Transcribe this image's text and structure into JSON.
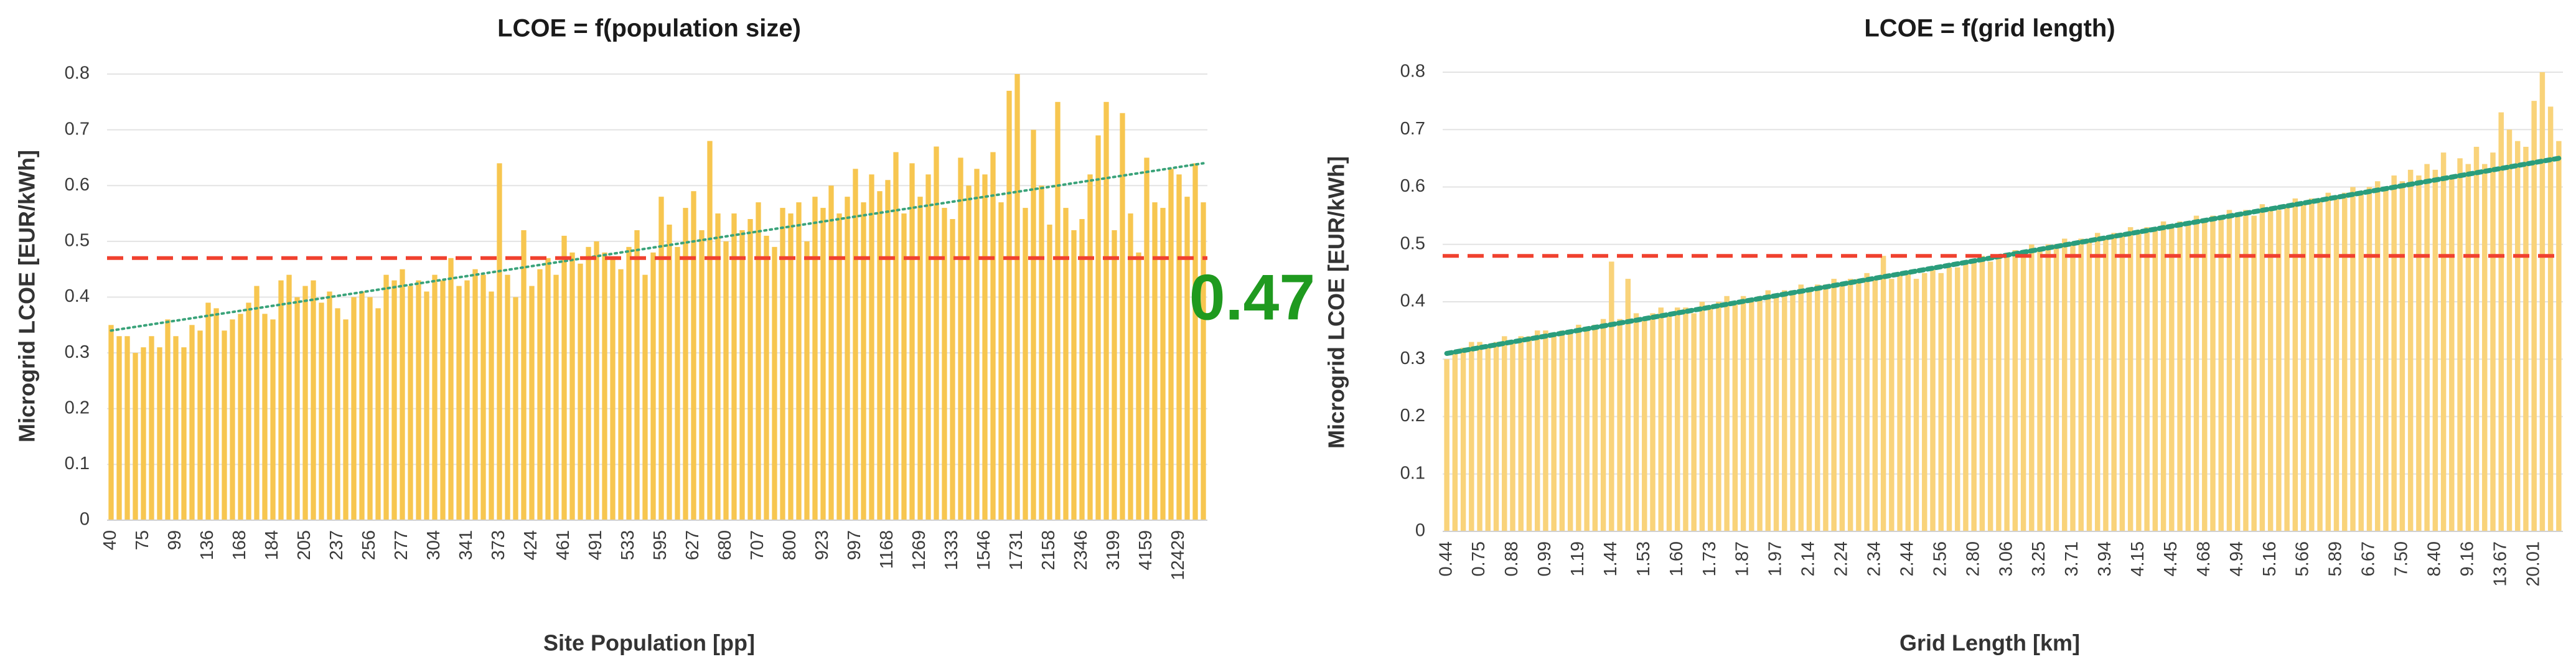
{
  "chart_data": [
    {
      "type": "bar",
      "title": "LCOE = f(population size)",
      "x_label": "Site Population [pp]",
      "y_label": "Microgrid LCOE [EUR/kWh]",
      "annotation": "0.47",
      "categories": [
        "40",
        null,
        null,
        null,
        "75",
        null,
        null,
        null,
        "99",
        null,
        null,
        null,
        "136",
        null,
        null,
        null,
        "168",
        null,
        null,
        null,
        "184",
        null,
        null,
        null,
        "205",
        null,
        null,
        null,
        "237",
        null,
        null,
        null,
        "256",
        null,
        null,
        null,
        "277",
        null,
        null,
        null,
        "304",
        null,
        null,
        null,
        "341",
        null,
        null,
        null,
        "373",
        null,
        null,
        null,
        "424",
        null,
        null,
        null,
        "461",
        null,
        null,
        null,
        "491",
        null,
        null,
        null,
        "533",
        null,
        null,
        null,
        "595",
        null,
        null,
        null,
        "627",
        null,
        null,
        null,
        "680",
        null,
        null,
        null,
        "707",
        null,
        null,
        null,
        "800",
        null,
        null,
        null,
        "923",
        null,
        null,
        null,
        "997",
        null,
        null,
        null,
        "1168",
        null,
        null,
        null,
        "1269",
        null,
        null,
        null,
        "1333",
        null,
        null,
        null,
        "1546",
        null,
        null,
        null,
        "1731",
        null,
        null,
        null,
        "2158",
        null,
        null,
        null,
        "2346",
        null,
        null,
        null,
        "3199",
        null,
        null,
        null,
        "4159",
        null,
        null,
        null,
        "12429",
        null,
        null,
        null
      ],
      "values": [
        0.35,
        0.33,
        0.33,
        0.3,
        0.31,
        0.33,
        0.31,
        0.36,
        0.33,
        0.31,
        0.35,
        0.34,
        0.39,
        0.38,
        0.34,
        0.36,
        0.37,
        0.39,
        0.42,
        0.37,
        0.36,
        0.43,
        0.44,
        0.4,
        0.42,
        0.43,
        0.39,
        0.41,
        0.38,
        0.36,
        0.4,
        0.41,
        0.4,
        0.38,
        0.44,
        0.43,
        0.45,
        0.42,
        0.43,
        0.41,
        0.44,
        0.43,
        0.47,
        0.42,
        0.43,
        0.45,
        0.44,
        0.41,
        0.64,
        0.44,
        0.4,
        0.52,
        0.42,
        0.45,
        0.47,
        0.44,
        0.51,
        0.48,
        0.46,
        0.49,
        0.5,
        0.48,
        0.47,
        0.45,
        0.49,
        0.52,
        0.44,
        0.48,
        0.58,
        0.53,
        0.49,
        0.56,
        0.59,
        0.52,
        0.68,
        0.55,
        0.5,
        0.55,
        0.52,
        0.54,
        0.57,
        0.51,
        0.49,
        0.56,
        0.55,
        0.57,
        0.5,
        0.58,
        0.56,
        0.6,
        0.55,
        0.58,
        0.63,
        0.57,
        0.62,
        0.59,
        0.61,
        0.66,
        0.55,
        0.64,
        0.58,
        0.62,
        0.67,
        0.56,
        0.54,
        0.65,
        0.6,
        0.63,
        0.62,
        0.66,
        0.57,
        0.77,
        0.8,
        0.56,
        0.7,
        0.6,
        0.53,
        0.75,
        0.56,
        0.52,
        0.54,
        0.62,
        0.69,
        0.75,
        0.52,
        0.73,
        0.55,
        0.48,
        0.65,
        0.57,
        0.56,
        0.63,
        0.62,
        0.58,
        0.64,
        0.57
      ],
      "color": "#f7c650",
      "trend": [
        0.34,
        0.64
      ],
      "trend_color": "#3aa37a",
      "threshold": 0.47,
      "threshold_color": "#f0412f",
      "ylim": [
        0,
        0.8
      ],
      "yticks": [
        0,
        0.1,
        0.2,
        0.3,
        0.4,
        0.5,
        0.6,
        0.7,
        0.8
      ],
      "grid": true
    },
    {
      "type": "bar",
      "title": "LCOE = f(grid length)",
      "x_label": "Grid Length [km]",
      "y_label": "Microgrid LCOE [EUR/kWh]",
      "categories": [
        "0.44",
        null,
        null,
        null,
        "0.75",
        null,
        null,
        null,
        "0.88",
        null,
        null,
        null,
        "0.99",
        null,
        null,
        null,
        "1.19",
        null,
        null,
        null,
        "1.44",
        null,
        null,
        null,
        "1.53",
        null,
        null,
        null,
        "1.60",
        null,
        null,
        null,
        "1.73",
        null,
        null,
        null,
        "1.87",
        null,
        null,
        null,
        "1.97",
        null,
        null,
        null,
        "2.14",
        null,
        null,
        null,
        "2.24",
        null,
        null,
        null,
        "2.34",
        null,
        null,
        null,
        "2.44",
        null,
        null,
        null,
        "2.56",
        null,
        null,
        null,
        "2.80",
        null,
        null,
        null,
        "3.06",
        null,
        null,
        null,
        "3.25",
        null,
        null,
        null,
        "3.71",
        null,
        null,
        null,
        "3.94",
        null,
        null,
        null,
        "4.15",
        null,
        null,
        null,
        "4.45",
        null,
        null,
        null,
        "4.68",
        null,
        null,
        null,
        "4.94",
        null,
        null,
        null,
        "5.16",
        null,
        null,
        null,
        "5.66",
        null,
        null,
        null,
        "5.89",
        null,
        null,
        null,
        "6.67",
        null,
        null,
        null,
        "7.50",
        null,
        null,
        null,
        "8.40",
        null,
        null,
        null,
        "9.16",
        null,
        null,
        null,
        "13.67",
        null,
        null,
        null,
        "20.01",
        null,
        null,
        null
      ],
      "values": [
        0.3,
        0.31,
        0.32,
        0.33,
        0.33,
        0.32,
        0.33,
        0.34,
        0.33,
        0.34,
        0.34,
        0.35,
        0.35,
        0.34,
        0.35,
        0.35,
        0.36,
        0.35,
        0.36,
        0.37,
        0.47,
        0.37,
        0.44,
        0.38,
        0.37,
        0.38,
        0.39,
        0.38,
        0.39,
        0.39,
        0.38,
        0.4,
        0.39,
        0.4,
        0.41,
        0.4,
        0.41,
        0.4,
        0.41,
        0.42,
        0.41,
        0.42,
        0.42,
        0.43,
        0.42,
        0.43,
        0.43,
        0.44,
        0.43,
        0.44,
        0.44,
        0.45,
        0.44,
        0.48,
        0.44,
        0.45,
        0.45,
        0.44,
        0.45,
        0.46,
        0.45,
        0.46,
        0.46,
        0.47,
        0.47,
        0.48,
        0.47,
        0.48,
        0.48,
        0.49,
        0.49,
        0.5,
        0.49,
        0.5,
        0.5,
        0.51,
        0.5,
        0.51,
        0.51,
        0.52,
        0.51,
        0.52,
        0.52,
        0.53,
        0.52,
        0.53,
        0.53,
        0.54,
        0.53,
        0.54,
        0.54,
        0.55,
        0.54,
        0.55,
        0.55,
        0.56,
        0.55,
        0.56,
        0.55,
        0.57,
        0.56,
        0.56,
        0.57,
        0.58,
        0.57,
        0.58,
        0.58,
        0.59,
        0.58,
        0.59,
        0.6,
        0.59,
        0.6,
        0.61,
        0.6,
        0.62,
        0.61,
        0.63,
        0.62,
        0.64,
        0.63,
        0.66,
        0.62,
        0.65,
        0.64,
        0.67,
        0.64,
        0.66,
        0.73,
        0.7,
        0.68,
        0.67,
        0.75,
        0.8,
        0.74,
        0.68
      ],
      "color": "#f9d37a",
      "trend": [
        0.31,
        0.65
      ],
      "trend_color": "#2a9d7c",
      "threshold": 0.48,
      "threshold_color": "#f0412f",
      "ylim": [
        0,
        0.8
      ],
      "yticks": [
        0,
        0.1,
        0.2,
        0.3,
        0.4,
        0.5,
        0.6,
        0.7,
        0.8
      ],
      "grid": true
    }
  ]
}
